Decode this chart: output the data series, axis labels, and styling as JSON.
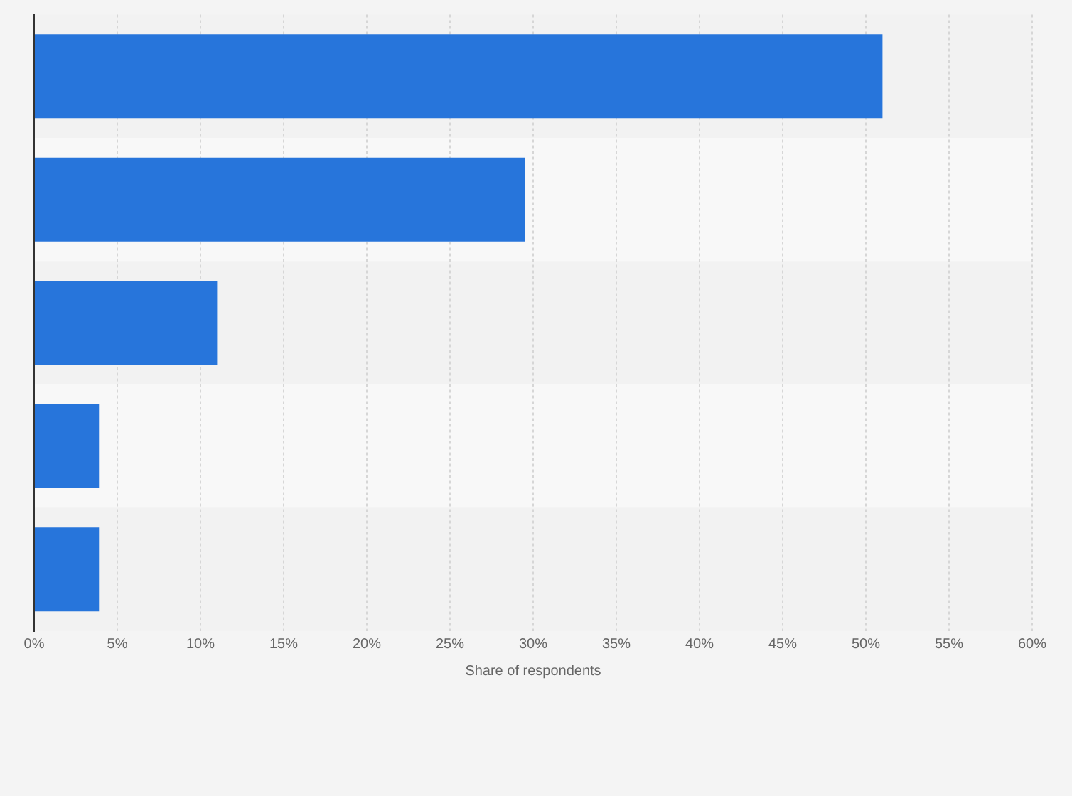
{
  "chart_data": {
    "type": "bar",
    "orientation": "horizontal",
    "categories": [
      null,
      null,
      null,
      null,
      null
    ],
    "values": [
      51,
      29.5,
      11,
      3.9,
      3.9
    ],
    "color": "#2775db",
    "xlabel": "Share of respondents",
    "xlim": [
      0,
      60
    ],
    "xticks": [
      {
        "value": 0,
        "label": "0%"
      },
      {
        "value": 5,
        "label": "5%"
      },
      {
        "value": 10,
        "label": "10%"
      },
      {
        "value": 15,
        "label": "15%"
      },
      {
        "value": 20,
        "label": "20%"
      },
      {
        "value": 25,
        "label": "25%"
      },
      {
        "value": 30,
        "label": "30%"
      },
      {
        "value": 35,
        "label": "35%"
      },
      {
        "value": 40,
        "label": "40%"
      },
      {
        "value": 45,
        "label": "45%"
      },
      {
        "value": 50,
        "label": "50%"
      },
      {
        "value": 55,
        "label": "55%"
      },
      {
        "value": 60,
        "label": "60%"
      }
    ],
    "grid": "x",
    "legend": false
  }
}
